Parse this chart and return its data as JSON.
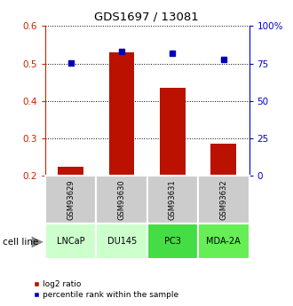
{
  "title": "GDS1697 / 13081",
  "samples": [
    "GSM93629",
    "GSM93630",
    "GSM93631",
    "GSM93632"
  ],
  "cell_lines": [
    "LNCaP",
    "DU145",
    "PC3",
    "MDA-2A"
  ],
  "cell_line_colors": [
    "#ccffcc",
    "#ccffcc",
    "#44dd44",
    "#66ee55"
  ],
  "log2_ratio": [
    0.225,
    0.53,
    0.435,
    0.285
  ],
  "percentile_rank_pct": [
    75.5,
    83.0,
    82.0,
    77.5
  ],
  "left_ylim": [
    0.2,
    0.6
  ],
  "right_ylim": [
    0,
    100
  ],
  "left_yticks": [
    0.2,
    0.3,
    0.4,
    0.5,
    0.6
  ],
  "right_yticks": [
    0,
    25,
    50,
    75,
    100
  ],
  "right_yticklabels": [
    "0",
    "25",
    "50",
    "75",
    "100%"
  ],
  "bar_color": "#bb1100",
  "dot_color": "#0000bb",
  "sample_box_color": "#cccccc",
  "bar_width": 0.5,
  "legend_label_ratio": "log2 ratio",
  "legend_label_pct": "percentile rank within the sample"
}
